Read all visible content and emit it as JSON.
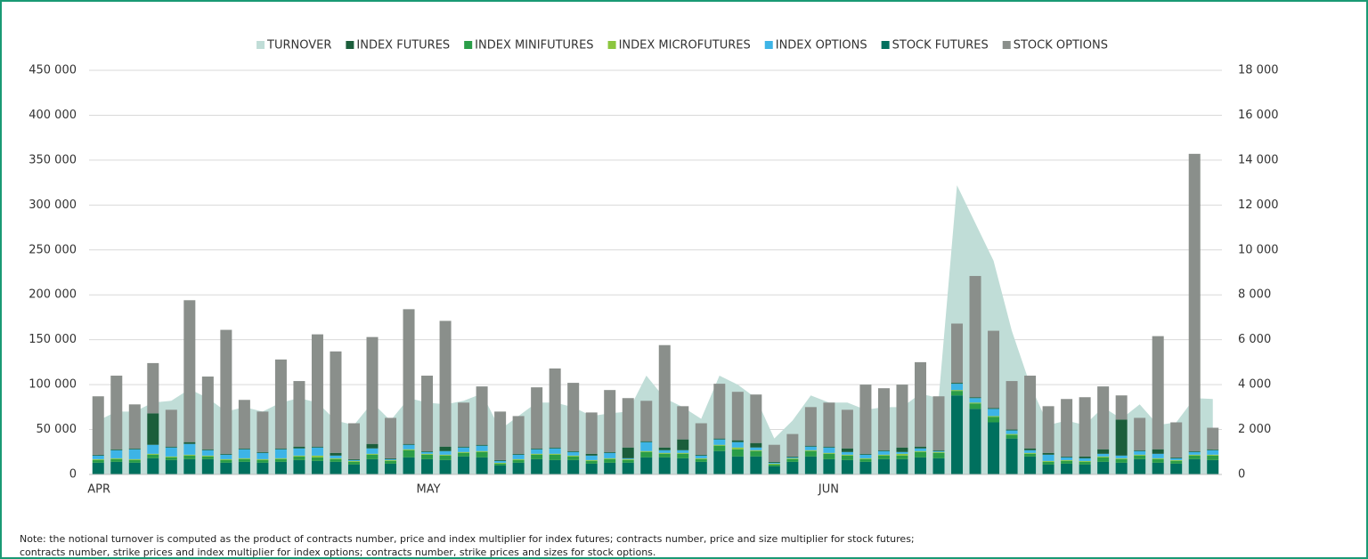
{
  "chart_data": {
    "type": "bar",
    "categories": [
      "APR",
      null,
      null,
      null,
      null,
      null,
      null,
      null,
      null,
      null,
      null,
      null,
      null,
      null,
      null,
      null,
      null,
      null,
      "MAY",
      null,
      null,
      null,
      null,
      null,
      null,
      null,
      null,
      null,
      null,
      null,
      null,
      null,
      null,
      null,
      null,
      null,
      null,
      null,
      null,
      null,
      "JUN",
      null,
      null,
      null,
      null,
      null,
      null,
      null,
      null,
      null,
      null,
      null,
      null,
      null,
      null,
      null,
      null,
      null,
      null,
      null,
      null,
      null
    ],
    "series": [
      {
        "name": "TURNOVER",
        "color": "#c0ddd7",
        "type": "area",
        "axis": "y2",
        "values": [
          2400,
          2800,
          2800,
          3200,
          3280,
          3800,
          3400,
          2800,
          3000,
          2800,
          3200,
          3400,
          3200,
          2400,
          2200,
          3200,
          2400,
          3400,
          3200,
          3120,
          3280,
          3600,
          2000,
          2600,
          3200,
          3200,
          3000,
          2600,
          2720,
          2800,
          4400,
          3400,
          3000,
          2480,
          4400,
          4000,
          3400,
          1600,
          2400,
          3520,
          3200,
          3200,
          2880,
          3000,
          3000,
          3600,
          3400,
          12880,
          11200,
          9520,
          6400,
          4000,
          2200,
          2400,
          2200,
          3000,
          2480,
          3120,
          2200,
          2320,
          3400,
          3360
        ]
      },
      {
        "name": "INDEX FUTURES",
        "color": "#1b5e3b",
        "values": [
          1000,
          1000,
          1000,
          35000,
          1000,
          2000,
          1000,
          1000,
          1000,
          1000,
          1000,
          2000,
          1000,
          3000,
          1000,
          5000,
          1000,
          1000,
          1000,
          5000,
          1000,
          1000,
          1000,
          1000,
          1000,
          1000,
          1000,
          2000,
          1000,
          12000,
          1000,
          3000,
          12000,
          1000,
          1000,
          2000,
          5000,
          1000,
          1000,
          1000,
          1000,
          4000,
          1000,
          1000,
          5000,
          2000,
          1000,
          1000,
          1000,
          1000,
          1000,
          2000,
          2000,
          1000,
          2000,
          5000,
          40000,
          1000,
          5000,
          1000,
          1000,
          1000
        ]
      },
      {
        "name": "INDEX MINIFUTURES",
        "color": "#2a9d48",
        "values": [
          3000,
          3000,
          3000,
          4000,
          3000,
          4000,
          3000,
          3000,
          3000,
          3000,
          3000,
          4000,
          4000,
          3000,
          3000,
          5000,
          3000,
          8000,
          5000,
          5000,
          4000,
          6000,
          2000,
          3000,
          5000,
          6000,
          4000,
          3000,
          4000,
          3000,
          6000,
          4000,
          5000,
          3000,
          6000,
          8000,
          6000,
          2000,
          3000,
          6000,
          6000,
          5000,
          3000,
          4000,
          4000,
          6000,
          6000,
          5000,
          6000,
          6000,
          4000,
          3000,
          3000,
          3000,
          3000,
          5000,
          4000,
          4000,
          4000,
          3000,
          4000,
          5000
        ]
      },
      {
        "name": "INDEX MICROFUTURES",
        "color": "#8cc63f",
        "values": [
          1000,
          1000,
          1000,
          1000,
          1000,
          1000,
          1000,
          1000,
          1000,
          1000,
          1000,
          1000,
          2000,
          1000,
          1000,
          1000,
          1000,
          1000,
          1000,
          1000,
          1000,
          1000,
          1000,
          1000,
          1000,
          1000,
          1000,
          1000,
          1000,
          1000,
          1000,
          1000,
          1000,
          1000,
          1000,
          2000,
          1000,
          1000,
          1000,
          1000,
          1000,
          1000,
          1000,
          1000,
          2000,
          1000,
          1000,
          1000,
          1000,
          1000,
          1000,
          1000,
          1000,
          1000,
          1000,
          1000,
          1000,
          1000,
          1000,
          1000,
          1000,
          1000
        ]
      },
      {
        "name": "INDEX OPTIONS",
        "color": "#3db4e6",
        "values": [
          4000,
          9000,
          11000,
          10000,
          10000,
          12000,
          6000,
          5000,
          10000,
          7000,
          10000,
          8000,
          9000,
          3000,
          1000,
          6000,
          1000,
          5000,
          2000,
          4000,
          5000,
          6000,
          2000,
          5000,
          5000,
          6000,
          4000,
          5000,
          6000,
          1000,
          10000,
          3000,
          3000,
          3000,
          6000,
          6000,
          3000,
          1000,
          1000,
          4000,
          6000,
          3000,
          4000,
          4000,
          2000,
          3000,
          1000,
          7000,
          5000,
          8000,
          4000,
          3000,
          7000,
          3000,
          3000,
          3000,
          3000,
          4000,
          5000,
          2000,
          3000,
          5000
        ]
      },
      {
        "name": "STOCK FUTURES",
        "color": "#00705e",
        "values": [
          13000,
          14000,
          13000,
          18000,
          16000,
          17000,
          17000,
          13000,
          14000,
          13000,
          14000,
          16000,
          15000,
          14000,
          11000,
          17000,
          12000,
          19000,
          17000,
          16000,
          20000,
          19000,
          10000,
          13000,
          17000,
          16000,
          16000,
          12000,
          13000,
          13000,
          19000,
          19000,
          18000,
          14000,
          26000,
          20000,
          20000,
          9000,
          14000,
          20000,
          17000,
          16000,
          14000,
          17000,
          17000,
          19000,
          18000,
          88000,
          73000,
          58000,
          40000,
          20000,
          11000,
          12000,
          11000,
          14000,
          13000,
          17000,
          13000,
          12000,
          17000,
          16000
        ]
      },
      {
        "name": "STOCK OPTIONS",
        "color": "#8a8f8b",
        "values": [
          65000,
          82000,
          49000,
          56000,
          41000,
          158000,
          81000,
          138000,
          54000,
          45000,
          99000,
          73000,
          125000,
          113000,
          40000,
          119000,
          45000,
          150000,
          84000,
          140000,
          49000,
          65000,
          54000,
          42000,
          68000,
          88000,
          76000,
          46000,
          69000,
          55000,
          45000,
          114000,
          37000,
          35000,
          61000,
          54000,
          54000,
          19000,
          25000,
          43000,
          49000,
          43000,
          77000,
          69000,
          70000,
          94000,
          60000,
          66000,
          135000,
          86000,
          54000,
          81000,
          52000,
          64000,
          66000,
          70000,
          27000,
          36000,
          126000,
          39000,
          331000,
          24000
        ]
      }
    ],
    "ylim": [
      0,
      450000
    ],
    "yticks": [
      0,
      {
        "value": 50000,
        "label": "50 000"
      },
      {
        "value": 100000,
        "label": "100 000"
      },
      {
        "value": 150000,
        "label": "150 000"
      },
      {
        "value": 200000,
        "label": "200 000"
      },
      {
        "value": 250000,
        "label": "250 000"
      },
      {
        "value": 300000,
        "label": "300 000"
      },
      {
        "value": 350000,
        "label": "350 000"
      },
      {
        "value": 400000,
        "label": "400 000"
      },
      {
        "value": 450000,
        "label": "450 000"
      }
    ],
    "y2lim": [
      0,
      18000
    ],
    "y2ticks": [
      0,
      {
        "value": 2000,
        "label": "2 000"
      },
      {
        "value": 4000,
        "label": "4 000"
      },
      {
        "value": 6000,
        "label": "6 000"
      },
      {
        "value": 8000,
        "label": "8 000"
      },
      {
        "value": 10000,
        "label": "10 000"
      },
      {
        "value": 12000,
        "label": "12 000"
      },
      {
        "value": 14000,
        "label": "14 000"
      },
      {
        "value": 16000,
        "label": "16 000"
      },
      {
        "value": 18000,
        "label": "18 000"
      }
    ],
    "grid": true,
    "legend": "top",
    "note": [
      "Note: the notional turnover is computed as the product of contracts number, price and index multiplier for index futures; contracts number, price and size multiplier for stock futures;",
      "contracts number, strike prices and index multiplier for index options; contracts number, strike prices and sizes for stock options."
    ]
  }
}
